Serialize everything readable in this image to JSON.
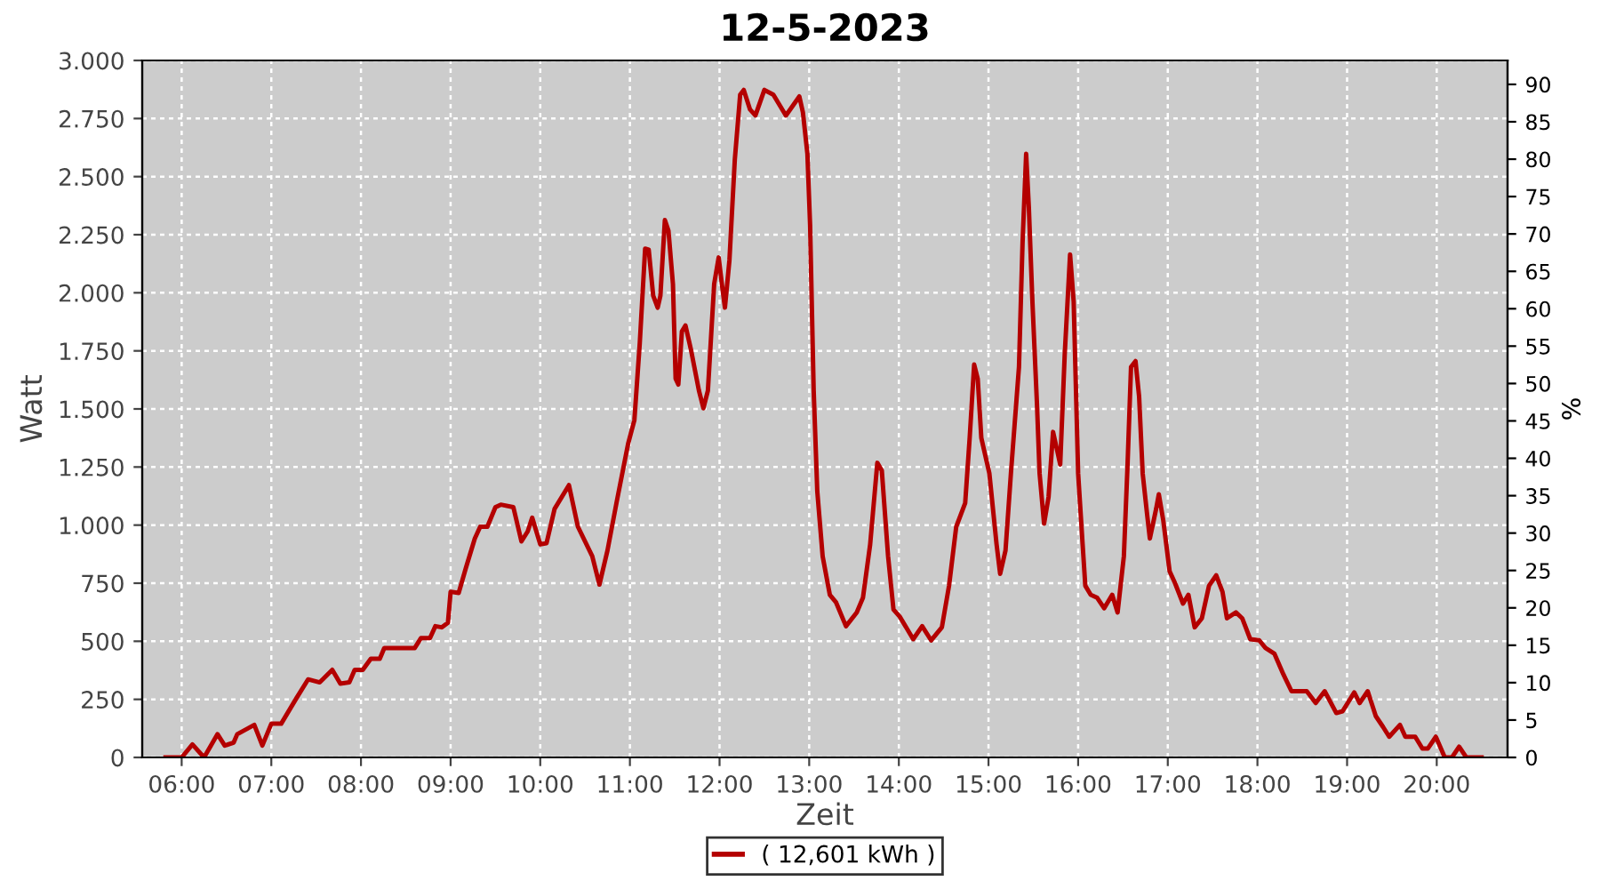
{
  "chart_data": {
    "type": "line",
    "title": "12-5-2023",
    "xlabel": "Zeit",
    "ylabel": "Watt",
    "y2label": "%",
    "x": [
      5.82,
      6.0,
      6.12,
      6.25,
      6.4,
      6.48,
      6.58,
      6.62,
      6.81,
      6.9,
      7.0,
      7.11,
      7.28,
      7.41,
      7.54,
      7.68,
      7.77,
      7.87,
      7.93,
      8.02,
      8.11,
      8.21,
      8.26,
      8.6,
      8.67,
      8.77,
      8.83,
      8.9,
      8.97,
      9.0,
      9.09,
      9.17,
      9.27,
      9.33,
      9.41,
      9.5,
      9.56,
      9.7,
      9.79,
      9.86,
      9.91,
      10.0,
      10.07,
      10.16,
      10.32,
      10.42,
      10.58,
      10.66,
      10.75,
      10.85,
      10.98,
      11.05,
      11.11,
      11.17,
      11.21,
      11.26,
      11.31,
      11.34,
      11.39,
      11.43,
      11.48,
      11.51,
      11.54,
      11.58,
      11.62,
      11.68,
      11.77,
      11.82,
      11.87,
      11.94,
      11.99,
      12.03,
      12.06,
      12.11,
      12.17,
      12.23,
      12.27,
      12.34,
      12.4,
      12.5,
      12.6,
      12.74,
      12.89,
      12.93,
      12.98,
      13.01,
      13.05,
      13.09,
      13.15,
      13.23,
      13.3,
      13.41,
      13.53,
      13.6,
      13.68,
      13.76,
      13.81,
      13.88,
      13.94,
      14.01,
      14.16,
      14.26,
      14.36,
      14.48,
      14.56,
      14.64,
      14.74,
      14.79,
      14.84,
      14.88,
      14.92,
      15.01,
      15.09,
      15.13,
      15.19,
      15.25,
      15.34,
      15.38,
      15.42,
      15.45,
      15.49,
      15.54,
      15.57,
      15.62,
      15.67,
      15.72,
      15.75,
      15.8,
      15.85,
      15.91,
      15.95,
      16.0,
      16.05,
      16.08,
      16.14,
      16.21,
      16.29,
      16.38,
      16.44,
      16.51,
      16.55,
      16.59,
      16.64,
      16.68,
      16.72,
      16.77,
      16.8,
      16.87,
      16.9,
      16.95,
      17.02,
      17.08,
      17.17,
      17.23,
      17.3,
      17.38,
      17.46,
      17.54,
      17.61,
      17.66,
      17.76,
      17.83,
      17.92,
      18.02,
      18.09,
      18.19,
      18.29,
      18.38,
      18.55,
      18.65,
      18.75,
      18.88,
      18.95,
      19.08,
      19.14,
      19.23,
      19.32,
      19.4,
      19.47,
      19.59,
      19.65,
      19.76,
      19.84,
      19.9,
      19.99,
      20.09,
      20.17,
      20.25,
      20.33,
      20.5
    ],
    "series": [
      {
        "name": "( 12,601 kWh )",
        "color": "#b40000",
        "values": [
          0,
          0,
          56,
          0,
          100,
          51,
          64,
          100,
          140,
          51,
          145,
          145,
          255,
          336,
          323,
          377,
          318,
          323,
          377,
          377,
          425,
          425,
          471,
          471,
          514,
          514,
          565,
          560,
          580,
          713,
          708,
          815,
          942,
          993,
          993,
          1077,
          1088,
          1077,
          930,
          973,
          1032,
          917,
          922,
          1070,
          1172,
          993,
          866,
          744,
          891,
          1095,
          1350,
          1452,
          1783,
          2190,
          2185,
          1987,
          1936,
          1987,
          2313,
          2267,
          2038,
          1630,
          1605,
          1834,
          1859,
          1757,
          1579,
          1503,
          1579,
          2038,
          2152,
          2025,
          1936,
          2139,
          2572,
          2853,
          2873,
          2789,
          2763,
          2873,
          2853,
          2763,
          2845,
          2776,
          2598,
          2292,
          1579,
          1146,
          866,
          700,
          667,
          565,
          624,
          688,
          917,
          1268,
          1235,
          866,
          637,
          606,
          509,
          565,
          504,
          560,
          739,
          993,
          1095,
          1375,
          1691,
          1630,
          1375,
          1222,
          917,
          790,
          891,
          1222,
          1681,
          2216,
          2598,
          2369,
          1961,
          1528,
          1222,
          1006,
          1121,
          1401,
          1350,
          1261,
          1732,
          2165,
          1961,
          1222,
          917,
          739,
          700,
          688,
          642,
          700,
          624,
          866,
          1248,
          1681,
          1706,
          1554,
          1222,
          1044,
          942,
          1070,
          1133,
          1019,
          802,
          751,
          662,
          700,
          560,
          599,
          739,
          784,
          713,
          599,
          624,
          599,
          509,
          504,
          471,
          446,
          357,
          285,
          285,
          234,
          285,
          191,
          199,
          280,
          234,
          285,
          178,
          132,
          89,
          140,
          89,
          89,
          38,
          38,
          89,
          0,
          0,
          46,
          0,
          0
        ]
      }
    ],
    "xlim": [
      5.56,
      20.79
    ],
    "xticks": [
      {
        "value": 6,
        "label": "06:00"
      },
      {
        "value": 7,
        "label": "07:00"
      },
      {
        "value": 8,
        "label": "08:00"
      },
      {
        "value": 9,
        "label": "09:00"
      },
      {
        "value": 10,
        "label": "10:00"
      },
      {
        "value": 11,
        "label": "11:00"
      },
      {
        "value": 12,
        "label": "12:00"
      },
      {
        "value": 13,
        "label": "13:00"
      },
      {
        "value": 14,
        "label": "14:00"
      },
      {
        "value": 15,
        "label": "15:00"
      },
      {
        "value": 16,
        "label": "16:00"
      },
      {
        "value": 17,
        "label": "17:00"
      },
      {
        "value": 18,
        "label": "18:00"
      },
      {
        "value": 19,
        "label": "19:00"
      },
      {
        "value": 20,
        "label": "20:00"
      }
    ],
    "ylim": [
      0,
      3000
    ],
    "yticks": [
      0,
      250,
      500,
      750,
      {
        "value": 1000,
        "label": "1.000"
      },
      {
        "value": 1250,
        "label": "1.250"
      },
      {
        "value": 1500,
        "label": "1.500"
      },
      {
        "value": 1750,
        "label": "1.750"
      },
      {
        "value": 2000,
        "label": "2.000"
      },
      {
        "value": 2250,
        "label": "2.250"
      },
      {
        "value": 2500,
        "label": "2.500"
      },
      {
        "value": 2750,
        "label": "2.750"
      },
      {
        "value": 3000,
        "label": "3.000"
      }
    ],
    "y2lim": [
      0,
      93.2
    ],
    "y2ticks": [
      0,
      5,
      10,
      15,
      20,
      25,
      30,
      35,
      40,
      45,
      50,
      55,
      60,
      65,
      70,
      75,
      80,
      85,
      90
    ],
    "grid": true,
    "legend": "bottom",
    "marker": "none",
    "line_style": "solid"
  }
}
